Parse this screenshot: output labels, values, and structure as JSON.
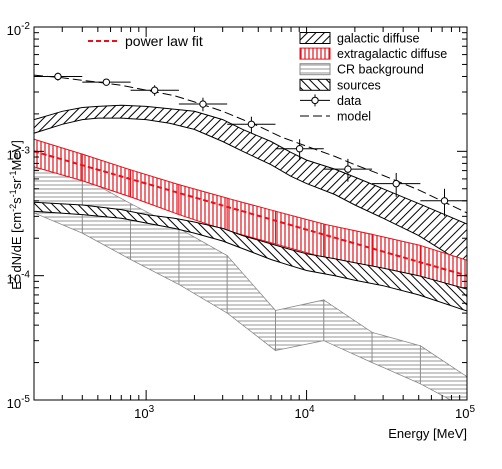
{
  "chart_data": {
    "type": "line",
    "xlabel": "Energy [MeV]",
    "ylabel": {
      "parts": [
        "E",
        "2",
        " dN/dE [cm",
        "-2",
        "s",
        "-1",
        "sr",
        "-1",
        "MeV]"
      ]
    },
    "x_scale": "log",
    "y_scale": "log",
    "xlim": [
      200,
      100000
    ],
    "ylim": [
      1e-05,
      0.01
    ],
    "x_ticks": [
      {
        "value": 1000,
        "base": "10",
        "exp": "3"
      },
      {
        "value": 10000,
        "base": "10",
        "exp": "4"
      },
      {
        "value": 100000,
        "base": "10",
        "exp": "5"
      }
    ],
    "y_ticks": [
      {
        "value": 1e-05,
        "base": "10",
        "exp": "-5"
      },
      {
        "value": 0.0001,
        "base": "10",
        "exp": "-4"
      },
      {
        "value": 0.001,
        "base": "10",
        "exp": "-3"
      },
      {
        "value": 0.01,
        "base": "10",
        "exp": "-2"
      }
    ],
    "grid": false,
    "legend_placement": "top-right",
    "legend": [
      {
        "key": "galactic",
        "label": "galactic diffuse",
        "style": "hatch-fwd"
      },
      {
        "key": "extragalactic",
        "label": "extragalactic diffuse",
        "style": "hatch-vert-red"
      },
      {
        "key": "cr",
        "label": "CR background",
        "style": "hatch-horiz-gray"
      },
      {
        "key": "sources",
        "label": "sources",
        "style": "hatch-back"
      },
      {
        "key": "data",
        "label": "data",
        "style": "marker"
      },
      {
        "key": "model",
        "label": "model",
        "style": "dashed"
      }
    ],
    "legend_powerlaw": {
      "key": "powerlaw",
      "label": "power law fit",
      "color": "#e8111b"
    },
    "series": {
      "galactic": {
        "x": [
          200,
          300,
          400,
          500,
          700,
          1000,
          1400,
          2000,
          3000,
          4000,
          6000,
          8000,
          10000,
          15000,
          20000,
          30000,
          50000,
          100000
        ],
        "lower": [
          0.0014,
          0.00165,
          0.0018,
          0.00185,
          0.00185,
          0.0018,
          0.00168,
          0.0015,
          0.0012,
          0.001,
          0.00078,
          0.00063,
          0.00055,
          0.00045,
          0.00037,
          0.00029,
          0.00021,
          0.00012
        ],
        "upper": [
          0.0018,
          0.0021,
          0.00225,
          0.0023,
          0.00235,
          0.0023,
          0.0022,
          0.0021,
          0.0018,
          0.0015,
          0.0012,
          0.00098,
          0.00085,
          0.00072,
          0.00062,
          0.0005,
          0.00038,
          0.00026
        ]
      },
      "extragalactic": {
        "x": [
          200,
          400,
          800,
          1600,
          3200,
          6400,
          12800,
          25600,
          51200,
          100000
        ],
        "lower": [
          0.00075,
          0.00058,
          0.00043,
          0.00031,
          0.00023,
          0.00018,
          0.00014,
          0.000115,
          9.25e-05,
          6.9e-05
        ],
        "upper": [
          0.00125,
          0.00095,
          0.00071,
          0.00054,
          0.00042,
          0.00033,
          0.00026,
          0.000215,
          0.000175,
          0.000133
        ]
      },
      "powerlaw": {
        "x": [
          200,
          100000
        ],
        "y": [
          0.001,
          0.0001
        ]
      },
      "cr": {
        "x": [
          200,
          400,
          800,
          1600,
          3200,
          6400,
          12800,
          25600,
          51200,
          100000
        ],
        "lower": [
          0.00032,
          0.00022,
          0.000135,
          8.5e-05,
          5e-05,
          2.5e-05,
          3e-05,
          2e-05,
          1.35e-05,
          8.5e-06
        ],
        "upper": [
          0.00088,
          0.00062,
          0.00038,
          0.00024,
          0.000145,
          5.25e-05,
          6.38e-05,
          3.5e-05,
          2.73e-05,
          1.54e-05
        ]
      },
      "sources": {
        "x": [
          200,
          400,
          700,
          1000,
          1500,
          2000,
          3000,
          4000,
          6000,
          8000,
          10000,
          15000,
          20000,
          30000,
          50000,
          100000
        ],
        "lower": [
          0.00033,
          0.00031,
          0.00029,
          0.000265,
          0.00024,
          0.00022,
          0.00019,
          0.000165,
          0.000135,
          0.00012,
          0.00011,
          0.0001,
          9.2e-05,
          8.3e-05,
          7e-05,
          5.2e-05
        ],
        "upper": [
          0.00039,
          0.00037,
          0.00034,
          0.00031,
          0.00029,
          0.00027,
          0.00024,
          0.00021,
          0.00018,
          0.000162,
          0.00015,
          0.000137,
          0.000127,
          0.000115,
          0.0001,
          7.8e-05
        ]
      },
      "model": {
        "x": [
          200,
          300,
          500,
          700,
          1000,
          1500,
          2000,
          3000,
          5000,
          7000,
          10000,
          15000,
          20000,
          30000,
          50000,
          100000
        ],
        "y": [
          0.0041,
          0.0039,
          0.0036,
          0.0034,
          0.0031,
          0.0028,
          0.0025,
          0.0021,
          0.0016,
          0.0013,
          0.0011,
          0.00091,
          0.00078,
          0.00064,
          0.00049,
          0.00032
        ]
      },
      "data": [
        {
          "x": 282,
          "y": 0.004,
          "xlo": 200,
          "xhi": 400,
          "yerr": 0.0003
        },
        {
          "x": 565,
          "y": 0.0036,
          "xlo": 400,
          "xhi": 800,
          "yerr": 0.0002
        },
        {
          "x": 1130,
          "y": 0.0031,
          "xlo": 800,
          "xhi": 1600,
          "yerr": 0.0003
        },
        {
          "x": 2260,
          "y": 0.0024,
          "xlo": 1600,
          "xhi": 3200,
          "yerr": 0.0003
        },
        {
          "x": 4530,
          "y": 0.00165,
          "xlo": 3200,
          "xhi": 6400,
          "yerr": 0.00025
        },
        {
          "x": 9050,
          "y": 0.00105,
          "xlo": 6400,
          "xhi": 12800,
          "yerr": 0.0002
        },
        {
          "x": 18100,
          "y": 0.00072,
          "xlo": 12800,
          "xhi": 25600,
          "yerr": 0.00015
        },
        {
          "x": 36200,
          "y": 0.00055,
          "xlo": 25600,
          "xhi": 51200,
          "yerr": 0.00012
        },
        {
          "x": 72400,
          "y": 0.0004,
          "xlo": 51200,
          "xhi": 100000,
          "yerr": 0.0001
        }
      ]
    }
  }
}
